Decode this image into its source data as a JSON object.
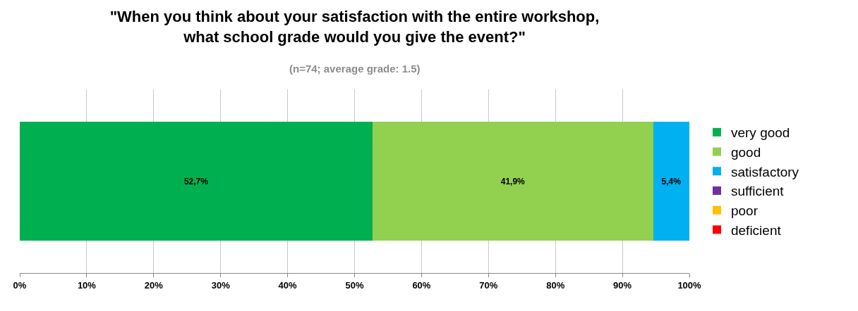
{
  "chart_data": {
    "type": "bar",
    "orientation": "horizontal",
    "stacked": true,
    "title": "\"When you think about your satisfaction with the entire workshop,\nwhat school grade would you give the event?\"",
    "subtitle": "(n=74; average grade: 1.5)",
    "categories": [
      null
    ],
    "series": [
      {
        "name": "very good",
        "color": "#00b050",
        "values": [
          52.7
        ],
        "value_labels": [
          "52,7%"
        ]
      },
      {
        "name": "good",
        "color": "#92d050",
        "values": [
          41.9
        ],
        "value_labels": [
          "41,9%"
        ]
      },
      {
        "name": "satisfactory",
        "color": "#00b0f0",
        "values": [
          5.4
        ],
        "value_labels": [
          "5,4%"
        ]
      },
      {
        "name": "sufficient",
        "color": "#7030a0",
        "values": [
          0
        ],
        "value_labels": [
          null
        ]
      },
      {
        "name": "poor",
        "color": "#ffc000",
        "values": [
          0
        ],
        "value_labels": [
          null
        ]
      },
      {
        "name": "deficient",
        "color": "#ff0000",
        "values": [
          0
        ],
        "value_labels": [
          null
        ]
      }
    ],
    "xlim": [
      0,
      100
    ],
    "xticks": [
      {
        "value": 0,
        "label": "0%"
      },
      {
        "value": 10,
        "label": "10%"
      },
      {
        "value": 20,
        "label": "20%"
      },
      {
        "value": 30,
        "label": "30%"
      },
      {
        "value": 40,
        "label": "40%"
      },
      {
        "value": 50,
        "label": "50%"
      },
      {
        "value": 60,
        "label": "60%"
      },
      {
        "value": 70,
        "label": "70%"
      },
      {
        "value": 80,
        "label": "80%"
      },
      {
        "value": 90,
        "label": "90%"
      },
      {
        "value": 100,
        "label": "100%"
      }
    ],
    "grid": "x",
    "legend": "right"
  }
}
